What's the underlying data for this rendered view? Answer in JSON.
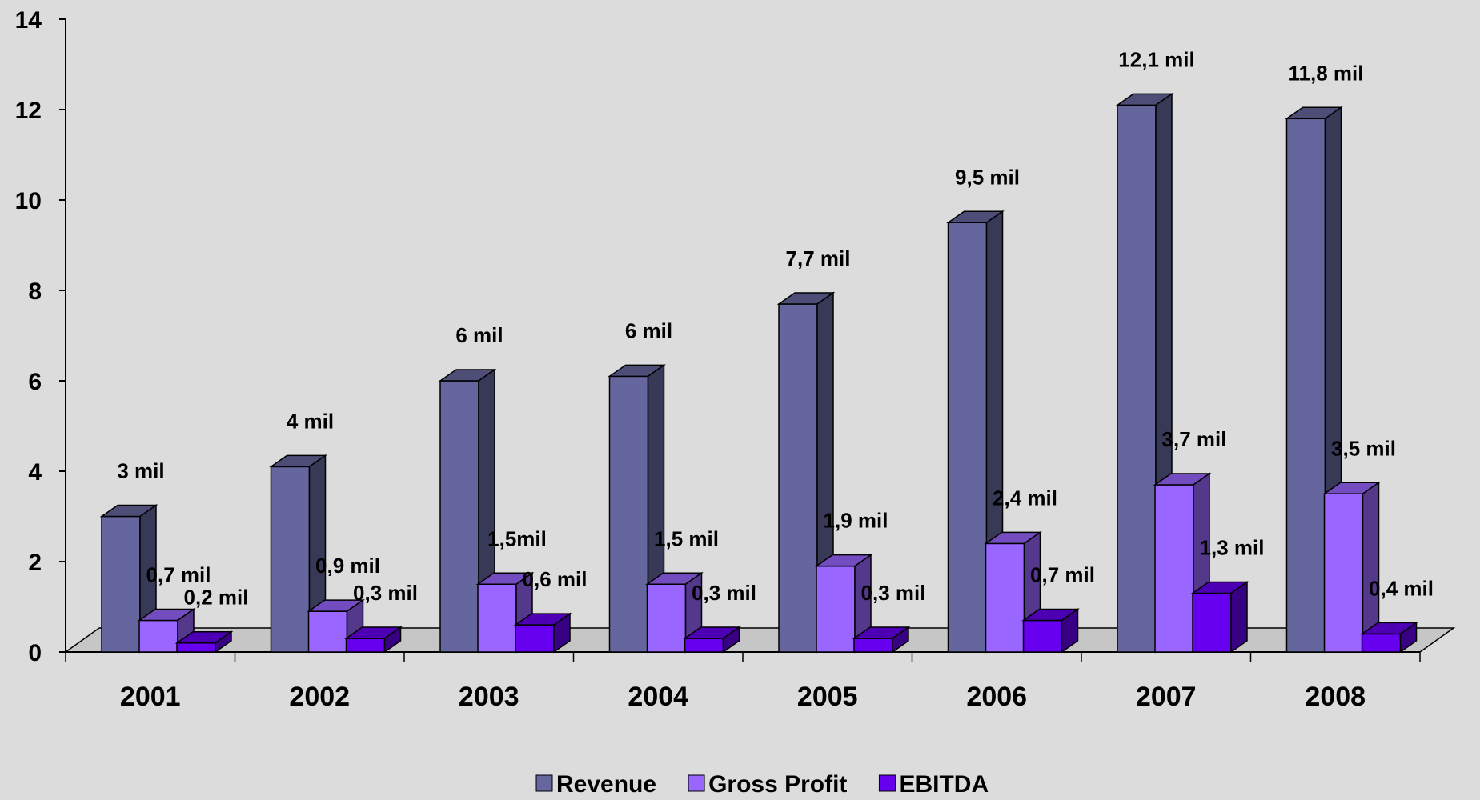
{
  "chart_data": {
    "type": "bar",
    "categories": [
      "2001",
      "2002",
      "2003",
      "2004",
      "2005",
      "2006",
      "2007",
      "2008"
    ],
    "series": [
      {
        "name": "Revenue",
        "values": [
          3.0,
          4.1,
          6.0,
          6.1,
          7.7,
          9.5,
          12.1,
          11.8
        ],
        "labels": [
          "3 mil",
          "4 mil",
          "6 mil",
          "6 mil",
          "7,7 mil",
          "9,5 mil",
          "12,1 mil",
          "11,8 mil"
        ],
        "color": "#66669e"
      },
      {
        "name": "Gross Profit",
        "values": [
          0.7,
          0.9,
          1.5,
          1.5,
          1.9,
          2.4,
          3.7,
          3.5
        ],
        "labels": [
          "0,7 mil",
          "0,9 mil",
          "1,5mil",
          "1,5 mil",
          "1,9 mil",
          "2,4 mil",
          "3,7 mil",
          "3,5 mil"
        ],
        "color": "#9966ff"
      },
      {
        "name": "EBITDA",
        "values": [
          0.2,
          0.3,
          0.6,
          0.3,
          0.3,
          0.7,
          1.3,
          0.4
        ],
        "labels": [
          "0,2 mil",
          "0,3 mil",
          "0,6 mil",
          "0,3 mil",
          "0,3 mil",
          "0,7 mil",
          "1,3 mil",
          "0,4 mil"
        ],
        "color": "#6600ee"
      }
    ],
    "ylim": [
      0,
      14
    ],
    "yticks": [
      "0",
      "2",
      "4",
      "6",
      "8",
      "10",
      "12",
      "14"
    ],
    "legend_position": "bottom",
    "grid": false,
    "background": "#dcdcdc"
  }
}
